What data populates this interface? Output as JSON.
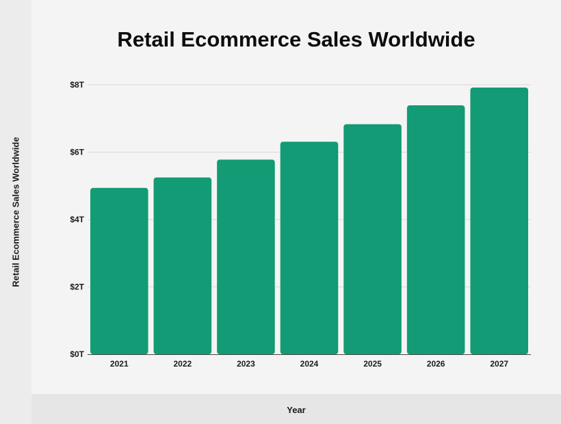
{
  "chart_data": {
    "type": "bar",
    "title": "Retail Ecommerce Sales Worldwide",
    "xlabel": "Year",
    "ylabel": "Retail Ecommerce Sales Worldwide",
    "categories": [
      "2021",
      "2022",
      "2023",
      "2024",
      "2025",
      "2026",
      "2027"
    ],
    "values": [
      4.94,
      5.25,
      5.78,
      6.31,
      6.83,
      7.39,
      7.92
    ],
    "unit": "trillion USD",
    "ylim": [
      0,
      8
    ],
    "yticks": [
      0,
      2,
      4,
      6,
      8
    ],
    "ytick_labels": [
      "$0T",
      "$2T",
      "$4T",
      "$6T",
      "$8T"
    ],
    "grid": true,
    "legend": "none",
    "colors": {
      "bar": "#129b74",
      "grid": "#d9d9d9",
      "axis": "#444444"
    }
  }
}
